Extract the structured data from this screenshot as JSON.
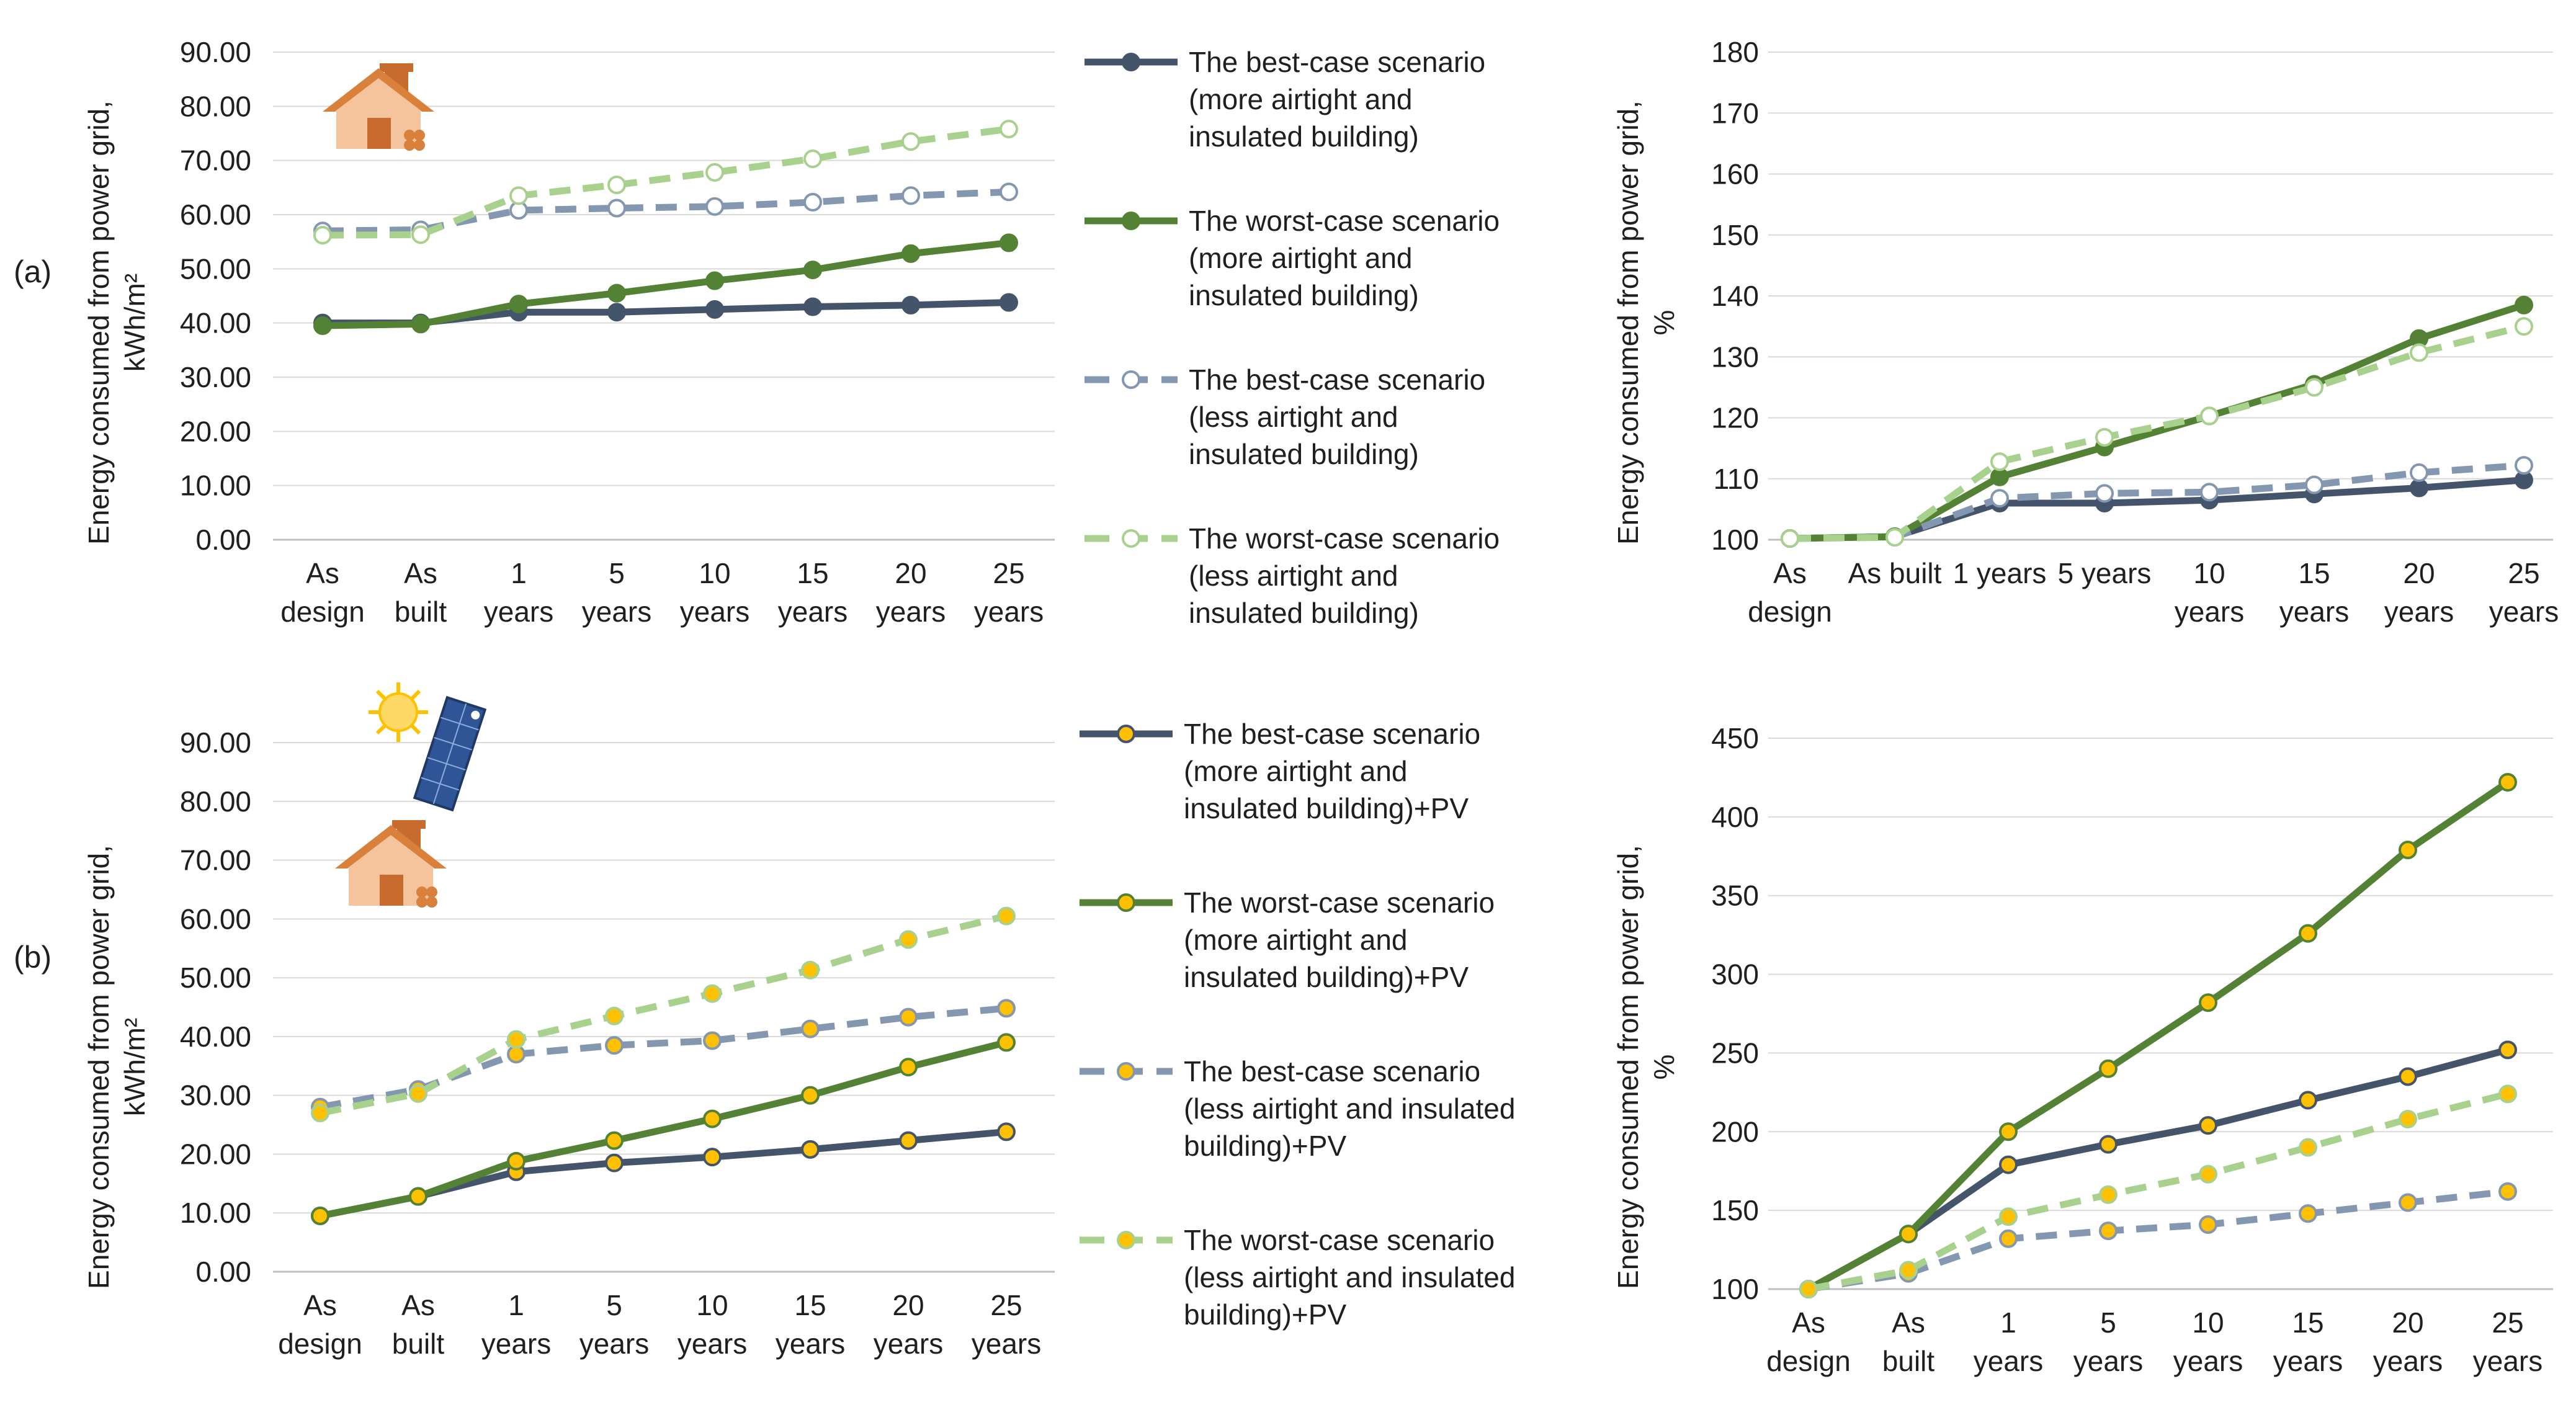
{
  "figure": {
    "panel_a_label": "(a)",
    "panel_b_label": "(b)",
    "absolute_ylabel_line1": "Energy consumed from power grid,",
    "absolute_ylabel_line2": "kWh/m²",
    "percent_ylabel_line1": "Energy consumed from power grid,",
    "percent_ylabel_line2": "%"
  },
  "legends": {
    "a": [
      {
        "lines": [
          "The best-case scenario",
          "(more airtight and",
          "insulated building)"
        ]
      },
      {
        "lines": [
          "The worst-case scenario",
          "(more airtight and",
          "insulated building)"
        ]
      },
      {
        "lines": [
          "The best-case scenario",
          "(less airtight and",
          "insulated building)"
        ]
      },
      {
        "lines": [
          "The worst-case scenario",
          "(less airtight and",
          "insulated building)"
        ]
      }
    ],
    "b": [
      {
        "lines": [
          "The best-case scenario",
          "(more airtight and",
          "insulated building)+PV"
        ]
      },
      {
        "lines": [
          "The worst-case scenario",
          "(more airtight and",
          "insulated building)+PV"
        ]
      },
      {
        "lines": [
          "The best-case scenario",
          "(less airtight and insulated",
          "building)+PV"
        ]
      },
      {
        "lines": [
          "The worst-case scenario",
          "(less airtight and insulated",
          "building)+PV"
        ]
      }
    ]
  },
  "colors": {
    "navy": "#44546a",
    "green": "#548235",
    "blue_gray": "#8497b0",
    "light_green": "#a9d18e",
    "marker_yellow": "#ffc000",
    "grid": "#d9d9d9",
    "axis": "#bfbfbf",
    "roof": "#d9803a",
    "wall": "#f5c39c",
    "door": "#c86b2f",
    "sun": "#ffc000",
    "panel": "#2f5597"
  },
  "chart_data": [
    {
      "id": "a_abs",
      "type": "line",
      "title": "",
      "xlabel": "",
      "ylabel": "Energy consumed from power grid, kWh/m2",
      "categories": [
        [
          "As",
          "design"
        ],
        [
          "As",
          "built"
        ],
        [
          "1",
          "years"
        ],
        [
          "5",
          "years"
        ],
        [
          "10",
          "years"
        ],
        [
          "15",
          "years"
        ],
        [
          "20",
          "years"
        ],
        [
          "25",
          "years"
        ]
      ],
      "ylim": [
        0,
        90
      ],
      "yticks": [
        "0.00",
        "10.00",
        "20.00",
        "30.00",
        "40.00",
        "50.00",
        "60.00",
        "70.00",
        "80.00",
        "90.00"
      ],
      "series": [
        {
          "name": "The best-case scenario (more airtight and insulated building)",
          "values": [
            40.0,
            40.0,
            42.0,
            42.0,
            42.5,
            43.0,
            43.3,
            43.8
          ]
        },
        {
          "name": "The worst-case scenario (more airtight and insulated building)",
          "values": [
            39.5,
            39.8,
            43.5,
            45.5,
            47.8,
            49.8,
            52.8,
            54.8
          ]
        },
        {
          "name": "The best-case scenario (less airtight and insulated building)",
          "values": [
            57.0,
            57.2,
            60.8,
            61.2,
            61.5,
            62.3,
            63.5,
            64.2
          ]
        },
        {
          "name": "The worst-case scenario (less airtight and insulated building)",
          "values": [
            56.2,
            56.3,
            63.5,
            65.5,
            67.8,
            70.3,
            73.5,
            75.8
          ]
        }
      ]
    },
    {
      "id": "a_pct",
      "type": "line",
      "title": "",
      "xlabel": "",
      "ylabel": "Energy consumed from power grid, %",
      "categories": [
        [
          "As",
          "design"
        ],
        [
          "As built"
        ],
        [
          "1 years"
        ],
        [
          "5 years"
        ],
        [
          "10",
          "years"
        ],
        [
          "15",
          "years"
        ],
        [
          "20",
          "years"
        ],
        [
          "25",
          "years"
        ]
      ],
      "ylim": [
        100,
        180
      ],
      "yticks": [
        "100",
        "110",
        "120",
        "130",
        "140",
        "150",
        "160",
        "170",
        "180"
      ],
      "series": [
        {
          "name": "The best-case scenario (more airtight and insulated building)",
          "values": [
            100.2,
            100.5,
            106.0,
            106.0,
            106.5,
            107.5,
            108.5,
            109.8
          ]
        },
        {
          "name": "The worst-case scenario (more airtight and insulated building)",
          "values": [
            100.2,
            100.5,
            110.3,
            115.2,
            120.3,
            125.5,
            133.0,
            138.5
          ]
        },
        {
          "name": "The best-case scenario (less airtight and insulated building)",
          "values": [
            100.2,
            100.4,
            106.8,
            107.6,
            107.8,
            109.0,
            111.0,
            112.2
          ]
        },
        {
          "name": "The worst-case scenario (less airtight and insulated building)",
          "values": [
            100.2,
            100.4,
            112.8,
            116.8,
            120.3,
            125.0,
            130.7,
            135.0
          ]
        }
      ]
    },
    {
      "id": "b_abs",
      "type": "line",
      "title": "",
      "xlabel": "",
      "ylabel": "Energy consumed from power grid, kWh/m2",
      "categories": [
        [
          "As",
          "design"
        ],
        [
          "As",
          "built"
        ],
        [
          "1",
          "years"
        ],
        [
          "5",
          "years"
        ],
        [
          "10",
          "years"
        ],
        [
          "15",
          "years"
        ],
        [
          "20",
          "years"
        ],
        [
          "25",
          "years"
        ]
      ],
      "ylim": [
        0,
        90
      ],
      "yticks": [
        "0.00",
        "10.00",
        "20.00",
        "30.00",
        "40.00",
        "50.00",
        "60.00",
        "70.00",
        "80.00",
        "90.00"
      ],
      "series": [
        {
          "name": "The best-case scenario (more airtight and insulated building)+PV",
          "values": [
            9.5,
            12.8,
            17.0,
            18.5,
            19.5,
            20.8,
            22.3,
            23.8
          ]
        },
        {
          "name": "The worst-case scenario (more airtight and insulated building)+PV",
          "values": [
            9.5,
            12.8,
            18.8,
            22.3,
            26.0,
            30.0,
            34.8,
            39.0
          ]
        },
        {
          "name": "The best-case scenario (less airtight and insulated building)+PV",
          "values": [
            28.0,
            31.0,
            37.0,
            38.5,
            39.3,
            41.3,
            43.3,
            44.8
          ]
        },
        {
          "name": "The worst-case scenario (less airtight and insulated building)+PV",
          "values": [
            27.0,
            30.3,
            39.5,
            43.5,
            47.3,
            51.3,
            56.5,
            60.5
          ]
        }
      ]
    },
    {
      "id": "b_pct",
      "type": "line",
      "title": "",
      "xlabel": "",
      "ylabel": "Energy consumed from power grid, %",
      "categories": [
        [
          "As",
          "design"
        ],
        [
          "As",
          "built"
        ],
        [
          "1",
          "years"
        ],
        [
          "5",
          "years"
        ],
        [
          "10",
          "years"
        ],
        [
          "15",
          "years"
        ],
        [
          "20",
          "years"
        ],
        [
          "25",
          "years"
        ]
      ],
      "ylim": [
        100,
        450
      ],
      "yticks": [
        "100",
        "150",
        "200",
        "250",
        "300",
        "350",
        "400",
        "450"
      ],
      "series": [
        {
          "name": "The best-case scenario (more airtight and insulated building)+PV",
          "values": [
            100,
            135,
            179,
            192,
            204,
            220,
            235,
            252
          ]
        },
        {
          "name": "The worst-case scenario (more airtight and insulated building)+PV",
          "values": [
            100,
            135,
            200,
            240,
            282,
            326,
            379,
            422
          ]
        },
        {
          "name": "The best-case scenario (less airtight and insulated building)+PV",
          "values": [
            100,
            110,
            132,
            137,
            141,
            148,
            155,
            162
          ]
        },
        {
          "name": "The worst-case scenario (less airtight and insulated building)+PV",
          "values": [
            100,
            112,
            146,
            160,
            173,
            190,
            208,
            224
          ]
        }
      ]
    }
  ]
}
